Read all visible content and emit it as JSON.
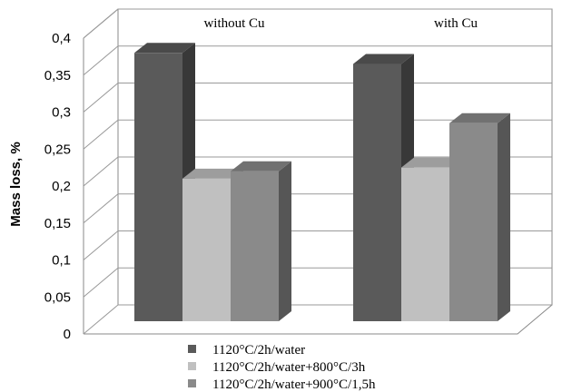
{
  "chart_data": {
    "type": "bar",
    "ylabel": "Mass loss, %",
    "ylim": [
      0,
      0.4
    ],
    "yticks": [
      "0",
      "0,05",
      "0,1",
      "0,15",
      "0,2",
      "0,25",
      "0,3",
      "0,35",
      "0,4"
    ],
    "categories": [
      "without Cu",
      "with Cu"
    ],
    "series": [
      {
        "name": "1120°C/2h/water",
        "values": [
          0.38,
          0.365
        ],
        "color": "#5a5a5a"
      },
      {
        "name": "1120°C/2h/water+800°C/3h",
        "values": [
          0.21,
          0.225
        ],
        "color": "#c0c0c0"
      },
      {
        "name": "1120°C/2h/water+900°C/1,5h",
        "values": [
          0.22,
          0.285
        ],
        "color": "#8a8a8a"
      }
    ],
    "grid": true,
    "legend_position": "bottom",
    "style": "3d-columns"
  }
}
